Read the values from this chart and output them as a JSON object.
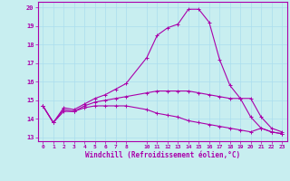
{
  "xlabel": "Windchill (Refroidissement éolien,°C)",
  "background_color": "#c8eef0",
  "grid_color": "#aaddee",
  "line_color": "#aa00aa",
  "xlim": [
    -0.5,
    23.5
  ],
  "ylim": [
    12.8,
    20.3
  ],
  "xticks": [
    0,
    1,
    2,
    3,
    4,
    5,
    6,
    7,
    8,
    10,
    11,
    12,
    13,
    14,
    15,
    16,
    17,
    18,
    19,
    20,
    21,
    22,
    23
  ],
  "xtick_labels": [
    "0",
    "1",
    "2",
    "3",
    "4",
    "5",
    "6",
    "7",
    "8",
    "10",
    "11",
    "12",
    "13",
    "14",
    "15",
    "16",
    "17",
    "18",
    "19",
    "20",
    "21",
    "22",
    "23"
  ],
  "yticks": [
    13,
    14,
    15,
    16,
    17,
    18,
    19,
    20
  ],
  "ytick_labels": [
    "13",
    "14",
    "15",
    "16",
    "17",
    "18",
    "19",
    "20"
  ],
  "line1_x": [
    0,
    1,
    2,
    3,
    4,
    5,
    6,
    7,
    8,
    10,
    11,
    12,
    13,
    14,
    15,
    16,
    17,
    18,
    19,
    20,
    21,
    22,
    23
  ],
  "line1_y": [
    14.7,
    13.8,
    14.6,
    14.5,
    14.8,
    15.1,
    15.3,
    15.6,
    15.9,
    17.3,
    18.5,
    18.9,
    19.1,
    19.9,
    19.9,
    19.2,
    17.2,
    15.8,
    15.1,
    14.1,
    13.5,
    13.3,
    13.2
  ],
  "line2_x": [
    0,
    1,
    2,
    3,
    4,
    5,
    6,
    7,
    8,
    10,
    11,
    12,
    13,
    14,
    15,
    16,
    17,
    18,
    19,
    20,
    21,
    22,
    23
  ],
  "line2_y": [
    14.7,
    13.8,
    14.5,
    14.4,
    14.7,
    14.9,
    15.0,
    15.1,
    15.2,
    15.4,
    15.5,
    15.5,
    15.5,
    15.5,
    15.4,
    15.3,
    15.2,
    15.1,
    15.1,
    15.1,
    14.1,
    13.5,
    13.3
  ],
  "line3_x": [
    0,
    1,
    2,
    3,
    4,
    5,
    6,
    7,
    8,
    10,
    11,
    12,
    13,
    14,
    15,
    16,
    17,
    18,
    19,
    20,
    21,
    22,
    23
  ],
  "line3_y": [
    14.7,
    13.8,
    14.4,
    14.4,
    14.6,
    14.7,
    14.7,
    14.7,
    14.7,
    14.5,
    14.3,
    14.2,
    14.1,
    13.9,
    13.8,
    13.7,
    13.6,
    13.5,
    13.4,
    13.3,
    13.5,
    13.3,
    13.2
  ]
}
